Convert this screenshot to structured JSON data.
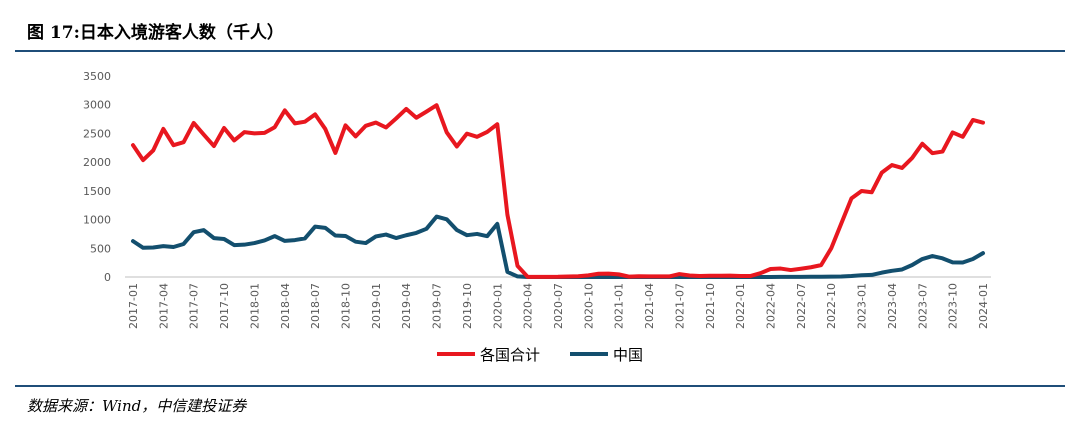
{
  "header": {
    "title": "图 17:日本入境游客人数（千人）"
  },
  "footer": {
    "source": "数据来源：Wind，中信建投证券"
  },
  "chart_data": {
    "type": "line",
    "title": "图 17:日本入境游客人数（千人）",
    "xlabel": "",
    "ylabel": "",
    "ylim": [
      0,
      3500
    ],
    "yticks": [
      "0",
      "500",
      "1000",
      "1500",
      "2000",
      "2500",
      "3000",
      "3500"
    ],
    "x": [
      "2017-01",
      "2017-02",
      "2017-03",
      "2017-04",
      "2017-05",
      "2017-06",
      "2017-07",
      "2017-08",
      "2017-09",
      "2017-10",
      "2017-11",
      "2017-12",
      "2018-01",
      "2018-02",
      "2018-03",
      "2018-04",
      "2018-05",
      "2018-06",
      "2018-07",
      "2018-08",
      "2018-09",
      "2018-10",
      "2018-11",
      "2018-12",
      "2019-01",
      "2019-02",
      "2019-03",
      "2019-04",
      "2019-05",
      "2019-06",
      "2019-07",
      "2019-08",
      "2019-09",
      "2019-10",
      "2019-11",
      "2019-12",
      "2020-01",
      "2020-02",
      "2020-03",
      "2020-04",
      "2020-05",
      "2020-06",
      "2020-07",
      "2020-08",
      "2020-09",
      "2020-10",
      "2020-11",
      "2020-12",
      "2021-01",
      "2021-02",
      "2021-03",
      "2021-04",
      "2021-05",
      "2021-06",
      "2021-07",
      "2021-08",
      "2021-09",
      "2021-10",
      "2021-11",
      "2021-12",
      "2022-01",
      "2022-02",
      "2022-03",
      "2022-04",
      "2022-05",
      "2022-06",
      "2022-07",
      "2022-08",
      "2022-09",
      "2022-10",
      "2022-11",
      "2022-12",
      "2023-01",
      "2023-02",
      "2023-03",
      "2023-04",
      "2023-05",
      "2023-06",
      "2023-07",
      "2023-08",
      "2023-09",
      "2023-10",
      "2023-11",
      "2023-12",
      "2024-01"
    ],
    "xtick_labels": [
      "2017-01",
      "2017-04",
      "2017-07",
      "2017-10",
      "2018-01",
      "2018-04",
      "2018-07",
      "2018-10",
      "2019-01",
      "2019-04",
      "2019-07",
      "2019-10",
      "2020-01",
      "2020-04",
      "2020-07",
      "2020-10",
      "2021-01",
      "2021-04",
      "2021-07",
      "2021-10",
      "2022-01",
      "2022-04",
      "2022-07",
      "2022-10",
      "2023-01",
      "2023-04",
      "2023-07",
      "2023-10",
      "2024-01"
    ],
    "series": [
      {
        "name": "各国合计",
        "color": "#e8171f",
        "values": [
          2296,
          2036,
          2205,
          2579,
          2295,
          2347,
          2682,
          2478,
          2280,
          2595,
          2378,
          2522,
          2501,
          2509,
          2607,
          2901,
          2675,
          2705,
          2832,
          2578,
          2160,
          2641,
          2448,
          2633,
          2689,
          2604,
          2760,
          2927,
          2773,
          2880,
          2991,
          2520,
          2273,
          2497,
          2441,
          2526,
          2661,
          1085,
          194,
          3,
          2,
          3,
          4,
          9,
          14,
          28,
          56,
          59,
          46,
          7,
          12,
          11,
          10,
          10,
          51,
          26,
          18,
          22,
          21,
          24,
          18,
          17,
          66,
          139,
          147,
          121,
          144,
          170,
          207,
          499,
          934,
          1370,
          1497,
          1475,
          1818,
          1949,
          1899,
          2073,
          2320,
          2156,
          2184,
          2517,
          2441,
          2734,
          2688
        ]
      },
      {
        "name": "中国",
        "color": "#134f6e",
        "values": [
          625,
          509,
          513,
          538,
          522,
          575,
          780,
          816,
          677,
          662,
          556,
          563,
          591,
          637,
          712,
          628,
          643,
          673,
          878,
          856,
          722,
          715,
          615,
          591,
          706,
          739,
          679,
          727,
          768,
          839,
          1052,
          1005,
          819,
          728,
          750,
          711,
          925,
          89,
          10,
          0,
          0,
          0,
          0,
          0,
          0,
          0,
          0,
          0,
          0,
          0,
          0,
          0,
          0,
          0,
          0,
          0,
          0,
          0,
          0,
          0,
          0,
          0,
          0,
          1,
          2,
          2,
          3,
          4,
          4,
          6,
          8,
          17,
          31,
          36,
          76,
          108,
          131,
          209,
          313,
          365,
          325,
          255,
          253,
          313,
          416
        ]
      }
    ],
    "legend": {
      "placement": "bottom"
    },
    "grid": false
  }
}
